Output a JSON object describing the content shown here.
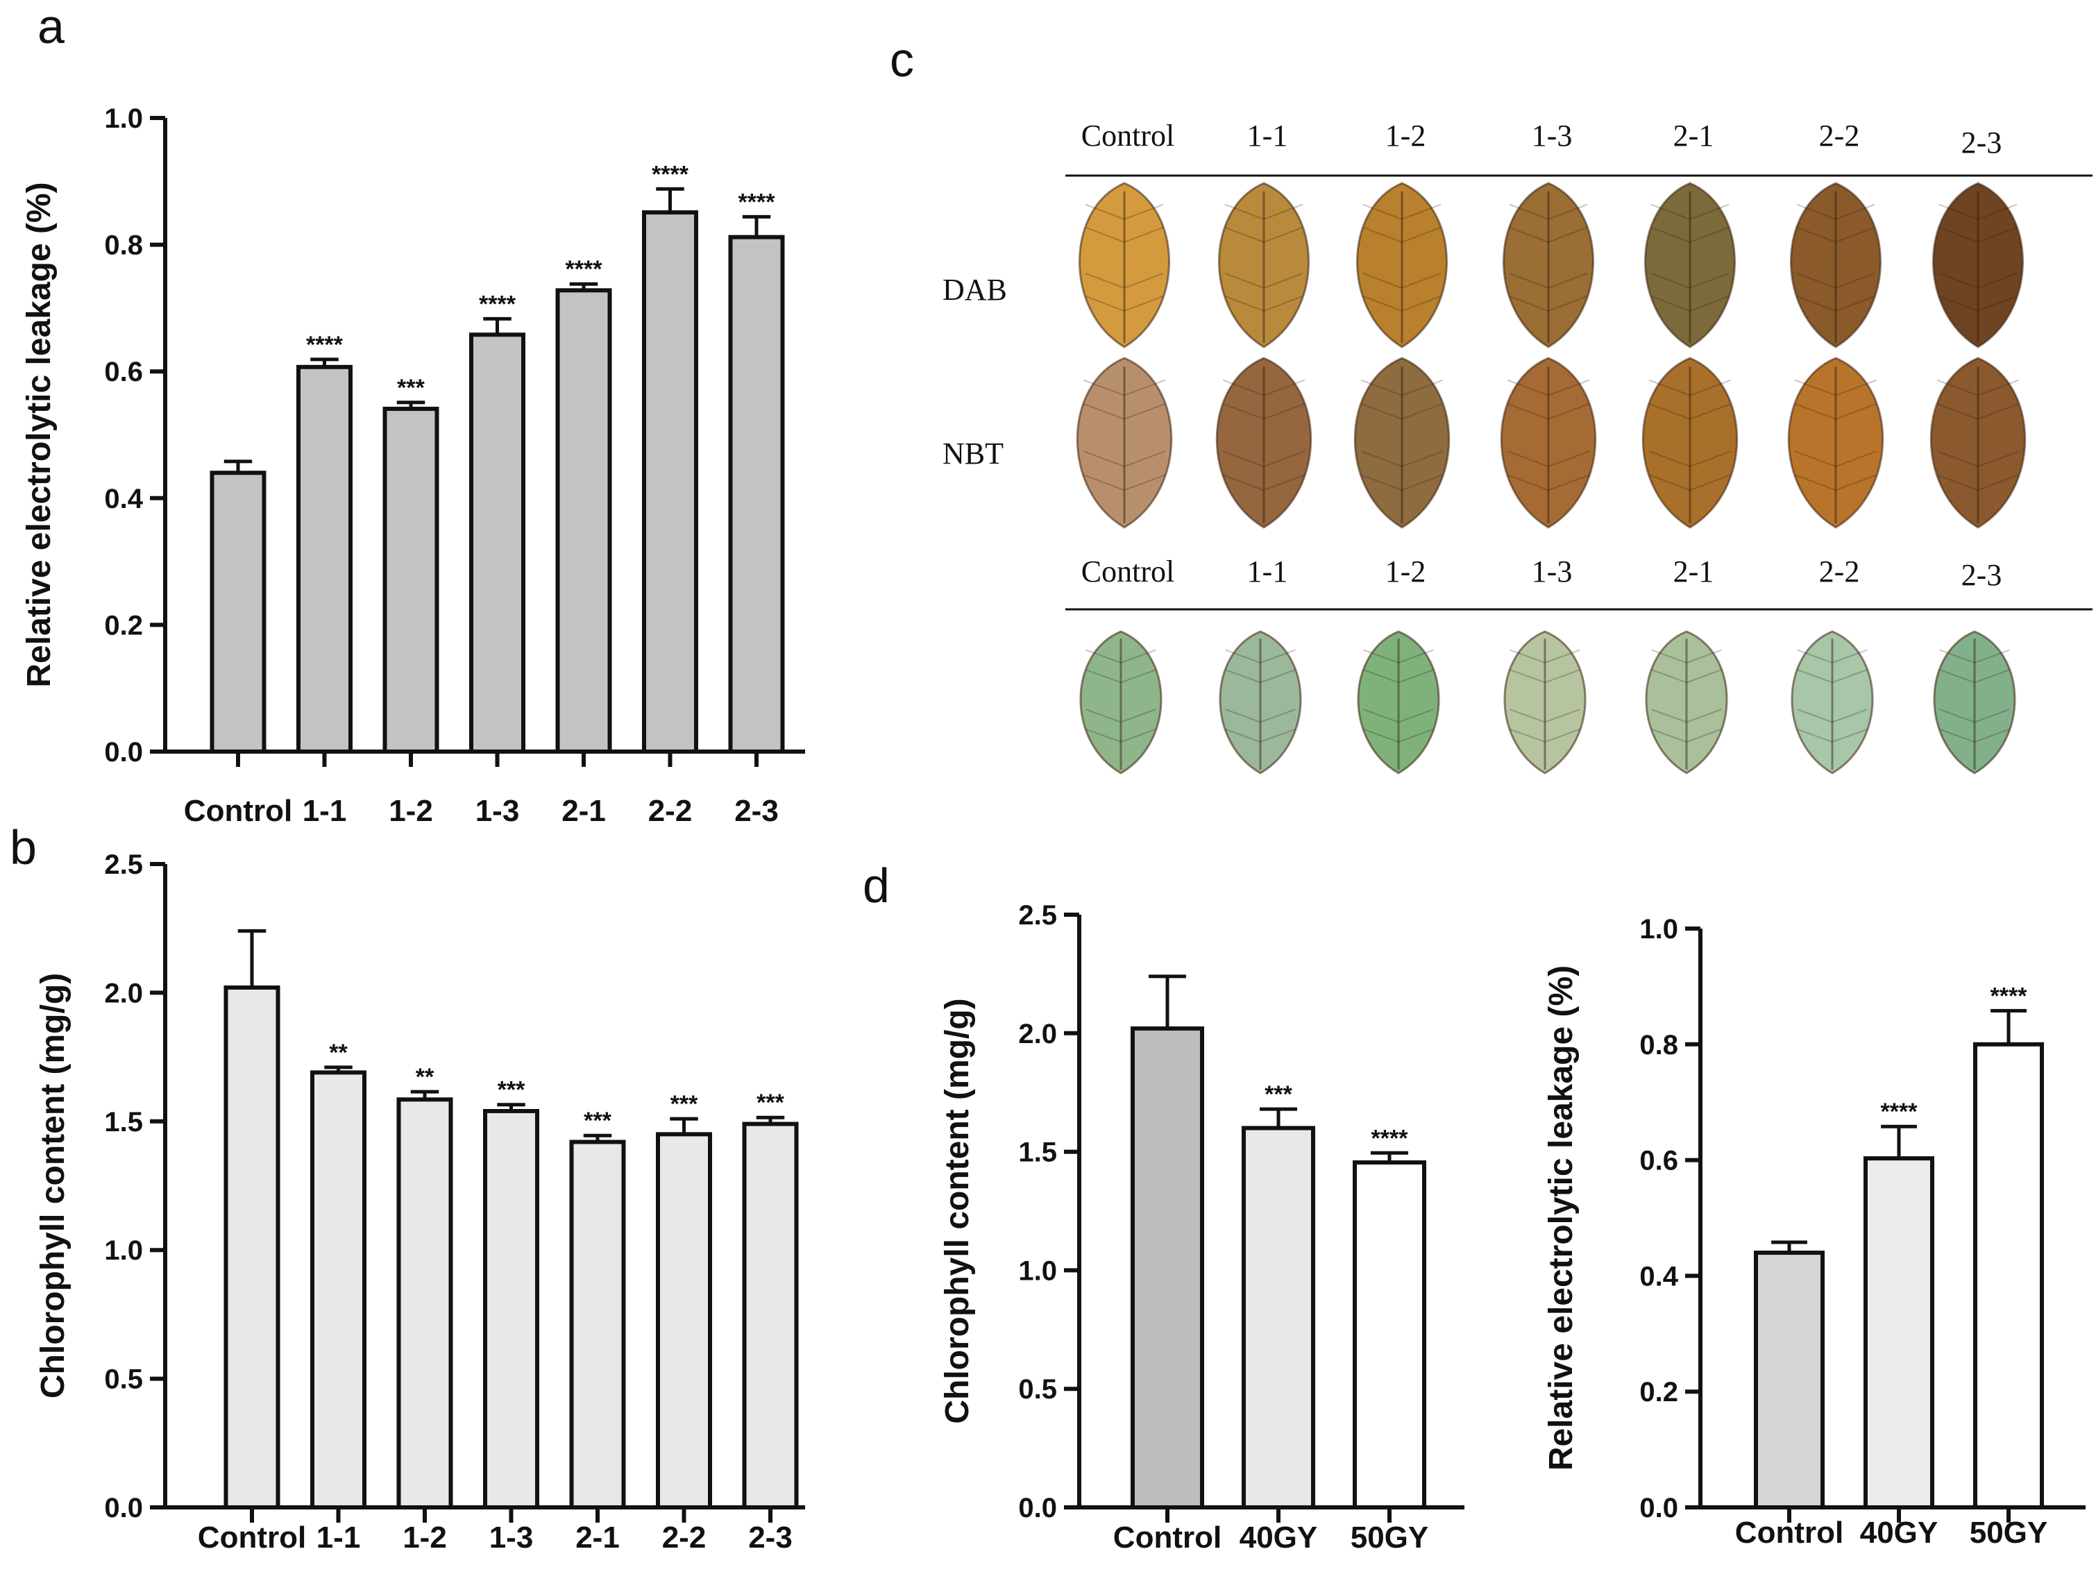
{
  "panels": {
    "a": "a",
    "b": "b",
    "c": "c",
    "d": "d"
  },
  "chart_data": [
    {
      "id": "a",
      "type": "bar",
      "ylabel": "Relative electrolytic leakage (%)",
      "xlabel": "",
      "categories": [
        "Control",
        "1-1",
        "1-2",
        "1-3",
        "2-1",
        "2-2",
        "2-3"
      ],
      "values": [
        0.44,
        0.607,
        0.541,
        0.658,
        0.728,
        0.851,
        0.812
      ],
      "errors": [
        0.018,
        0.012,
        0.01,
        0.025,
        0.01,
        0.037,
        0.032
      ],
      "significance": [
        "",
        "****",
        "***",
        "****",
        "****",
        "****",
        "****"
      ],
      "ylim": [
        0,
        1.0
      ],
      "yticks": [
        "0.0",
        "0.2",
        "0.4",
        "0.6",
        "0.8",
        "1.0"
      ],
      "colors": [
        "#c3c3c3",
        "#c3c3c3",
        "#c3c3c3",
        "#c3c3c3",
        "#c3c3c3",
        "#c3c3c3",
        "#c3c3c3"
      ]
    },
    {
      "id": "b",
      "type": "bar",
      "ylabel": "Chlorophyll content (mg/g)",
      "xlabel": "",
      "categories": [
        "Control",
        "1-1",
        "1-2",
        "1-3",
        "2-1",
        "2-2",
        "2-3"
      ],
      "values": [
        2.02,
        1.69,
        1.585,
        1.54,
        1.42,
        1.45,
        1.49
      ],
      "errors": [
        0.22,
        0.02,
        0.03,
        0.025,
        0.025,
        0.06,
        0.025
      ],
      "significance": [
        "",
        "**",
        "**",
        "***",
        "***",
        "***",
        "***"
      ],
      "ylim": [
        0,
        2.5
      ],
      "yticks": [
        "0.0",
        "0.5",
        "1.0",
        "1.5",
        "2.0",
        "2.5"
      ],
      "colors": [
        "#e8e8e8",
        "#e8e8e8",
        "#e8e8e8",
        "#e8e8e8",
        "#e8e8e8",
        "#e8e8e8",
        "#e8e8e8"
      ]
    },
    {
      "id": "d1",
      "type": "bar",
      "ylabel": "Chlorophyll content (mg/g)",
      "xlabel": "",
      "categories": [
        "Control",
        "40GY",
        "50GY"
      ],
      "values": [
        2.02,
        1.6,
        1.455
      ],
      "errors": [
        0.22,
        0.08,
        0.04
      ],
      "significance": [
        "",
        "***",
        "****"
      ],
      "ylim": [
        0,
        2.5
      ],
      "yticks": [
        "0.0",
        "0.5",
        "1.0",
        "1.5",
        "2.0",
        "2.5"
      ],
      "colors": [
        "#bdbdbd",
        "#e8e8e8",
        "#ffffff"
      ]
    },
    {
      "id": "d2",
      "type": "bar",
      "ylabel": "Relative electrolytic leakage (%)",
      "xlabel": "",
      "categories": [
        "Control",
        "40GY",
        "50GY"
      ],
      "values": [
        0.44,
        0.603,
        0.8
      ],
      "errors": [
        0.018,
        0.055,
        0.058
      ],
      "significance": [
        "",
        "****",
        "****"
      ],
      "ylim": [
        0,
        1.0
      ],
      "yticks": [
        "0.0",
        "0.2",
        "0.4",
        "0.6",
        "0.8",
        "1.0"
      ],
      "colors": [
        "#d6d6d6",
        "#ebebeb",
        "#ffffff"
      ]
    }
  ],
  "photo": {
    "header_top": [
      "Control",
      "1-1",
      "1-2",
      "1-3",
      "2-1",
      "2-2",
      "2-3"
    ],
    "row_labels": [
      "DAB",
      "NBT"
    ],
    "header_bottom": [
      "Control",
      "1-1",
      "1-2",
      "1-3",
      "2-1",
      "2-2",
      "2-3"
    ],
    "dab_colors": [
      "#d49a3e",
      "#b98a3c",
      "#b9802e",
      "#9a6e34",
      "#7d6a3a",
      "#8a5a2a",
      "#6f4422"
    ],
    "nbt_colors": [
      "#b88f6c",
      "#96673e",
      "#8e6c40",
      "#a66a34",
      "#a8702a",
      "#b8742a",
      "#8a5a2e"
    ],
    "green_colors": [
      "#8fb58a",
      "#9bb89a",
      "#7fb27a",
      "#b7c4a0",
      "#a9c09a",
      "#a8c6a8",
      "#82b08a"
    ]
  }
}
